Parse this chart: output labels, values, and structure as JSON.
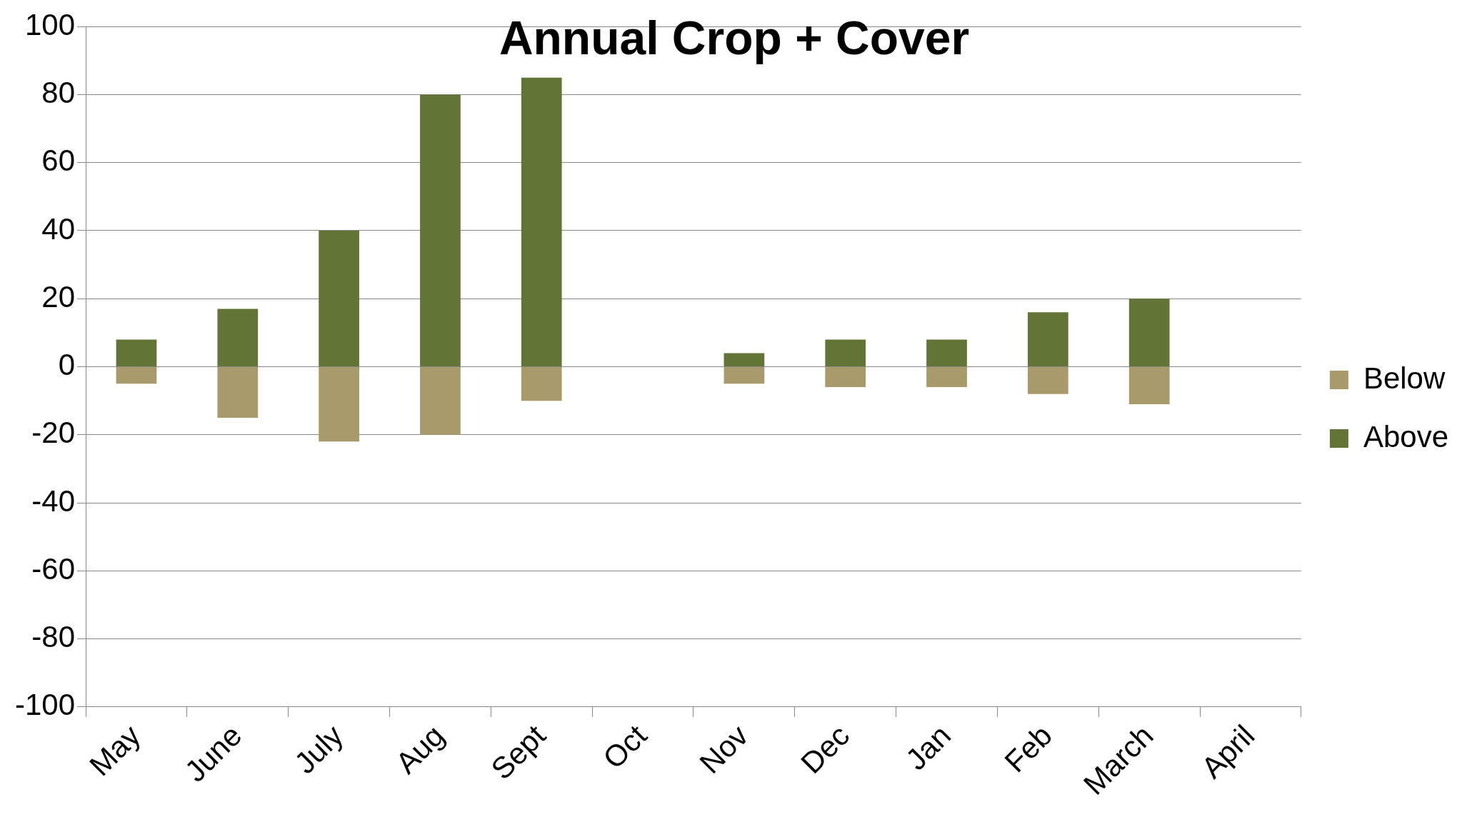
{
  "chart_data": {
    "type": "bar",
    "title": "Annual Crop + Cover",
    "stacked": true,
    "categories": [
      "May",
      "June",
      "July",
      "Aug",
      "Sept",
      "Oct",
      "Nov",
      "Dec",
      "Jan",
      "Feb",
      "March",
      "April"
    ],
    "series": [
      {
        "name": "Below",
        "color": "#a89a6a",
        "values": [
          -5,
          -15,
          -22,
          -20,
          -10,
          null,
          -5,
          -6,
          -6,
          -8,
          -11,
          null
        ]
      },
      {
        "name": "Above",
        "color": "#627436",
        "values": [
          8,
          17,
          40,
          80,
          85,
          null,
          4,
          8,
          8,
          16,
          20,
          null
        ]
      }
    ],
    "ylim": [
      -100,
      100
    ],
    "yticks": [
      -100,
      -80,
      -60,
      -40,
      -20,
      0,
      20,
      40,
      60,
      80,
      100
    ],
    "grid": "y",
    "legend": "right"
  }
}
